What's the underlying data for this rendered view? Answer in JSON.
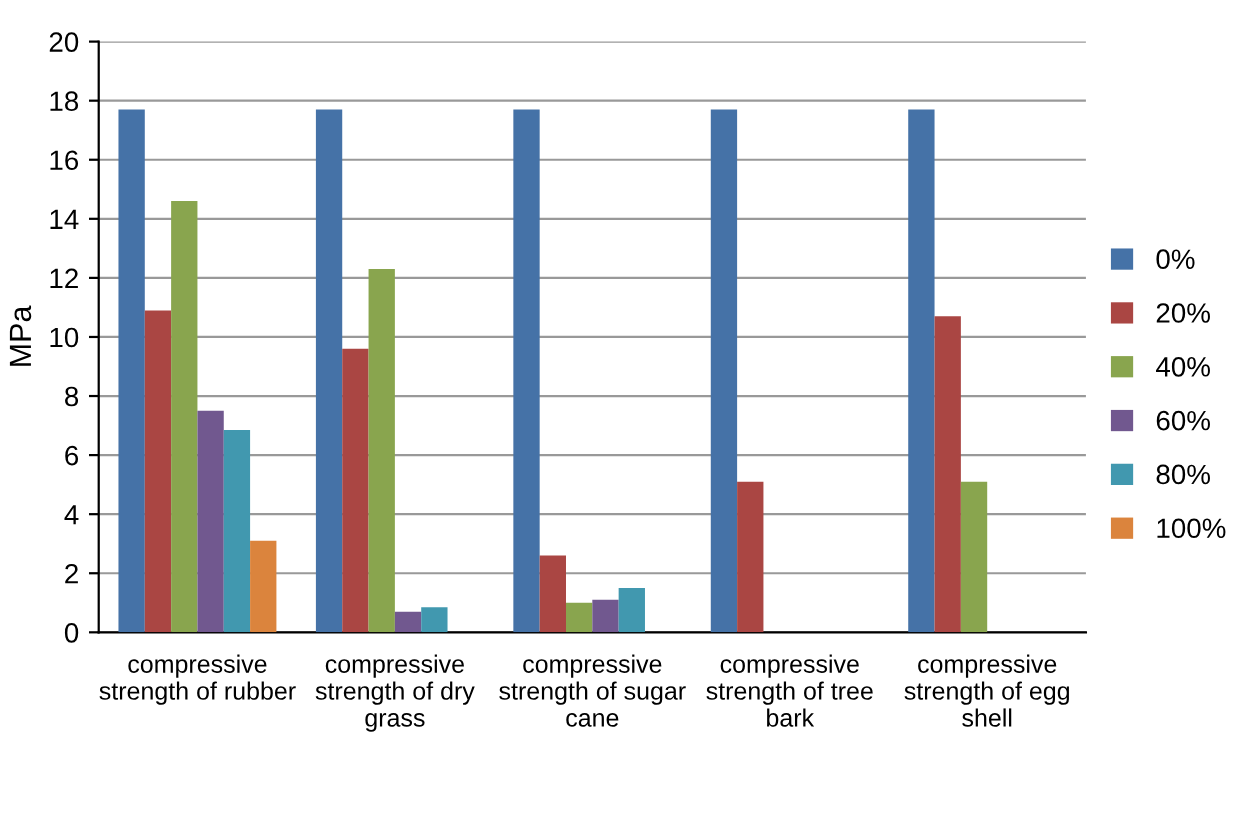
{
  "chart_data": {
    "type": "bar",
    "ylabel": "MPa",
    "categories": [
      "compressive strength of rubber",
      "compressive strength of dry grass",
      "compressive strength of sugar cane",
      "compressive strength of tree bark",
      "compressive strength of egg shell"
    ],
    "series": [
      {
        "name": "0%",
        "color": "#4572a7",
        "values": [
          17.7,
          17.7,
          17.7,
          17.7,
          17.7
        ]
      },
      {
        "name": "20%",
        "color": "#aa4643",
        "values": [
          10.9,
          9.6,
          2.6,
          5.1,
          10.7
        ]
      },
      {
        "name": "40%",
        "color": "#89a54e",
        "values": [
          14.6,
          12.3,
          1.0,
          null,
          5.1
        ]
      },
      {
        "name": "60%",
        "color": "#71588f",
        "values": [
          7.5,
          0.7,
          1.1,
          null,
          null
        ]
      },
      {
        "name": "80%",
        "color": "#4198af",
        "values": [
          6.85,
          0.85,
          1.5,
          null,
          null
        ]
      },
      {
        "name": "100%",
        "color": "#db843d",
        "values": [
          3.1,
          null,
          null,
          null,
          null
        ]
      }
    ],
    "ylim": [
      0,
      20
    ],
    "yticks": [
      0,
      2,
      4,
      6,
      8,
      10,
      12,
      14,
      16,
      18,
      20
    ],
    "grid": "y",
    "legend": "right"
  }
}
